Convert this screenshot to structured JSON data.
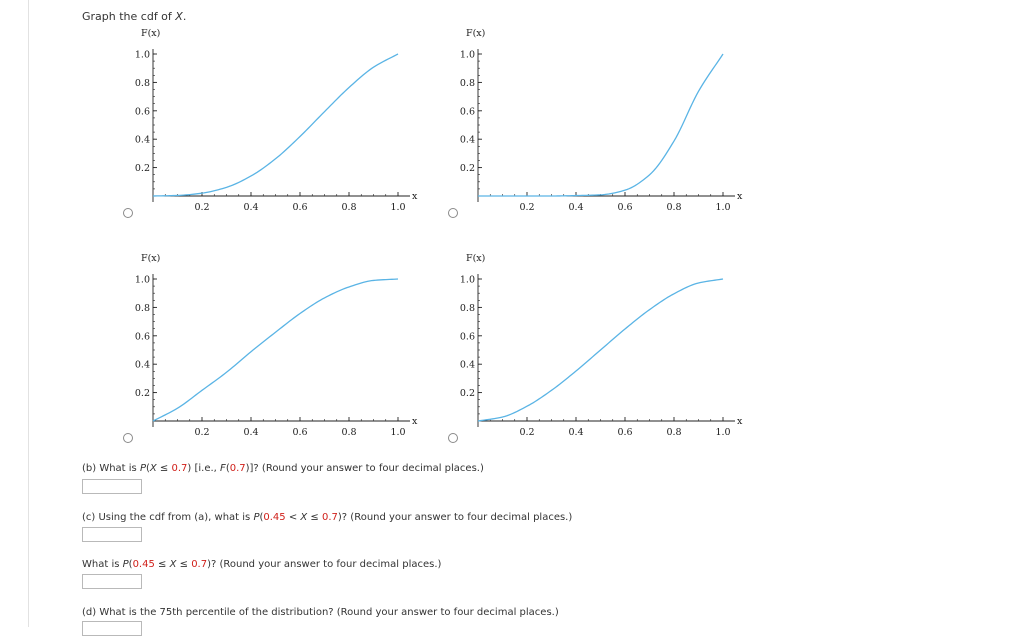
{
  "prompt": {
    "text": "Graph the cdf of ",
    "var": "X",
    "period": "."
  },
  "colors": {
    "curve": "#5ab4e5",
    "axis": "#222222",
    "highlight": "#d0201a"
  },
  "chart_data": [
    {
      "type": "line",
      "ylabel": "F(x)",
      "xlabel": "x",
      "xlim": [
        0,
        1
      ],
      "ylim": [
        0,
        1
      ],
      "xticks": [
        "0.2",
        "0.4",
        "0.6",
        "0.8",
        "1.0"
      ],
      "yticks": [
        "1.0",
        "0.8",
        "0.6",
        "0.4",
        "0.2"
      ],
      "x": [
        0,
        0.1,
        0.2,
        0.3,
        0.4,
        0.5,
        0.6,
        0.7,
        0.8,
        0.9,
        1.0
      ],
      "y": [
        0,
        0.004,
        0.02,
        0.061,
        0.141,
        0.262,
        0.419,
        0.594,
        0.764,
        0.907,
        1.0
      ]
    },
    {
      "type": "line",
      "ylabel": "F(x)",
      "xlabel": "x",
      "xlim": [
        0,
        1
      ],
      "ylim": [
        0,
        1
      ],
      "xticks": [
        "0.2",
        "0.4",
        "0.6",
        "0.8",
        "1.0"
      ],
      "yticks": [
        "1.0",
        "0.8",
        "0.6",
        "0.4",
        "0.2"
      ],
      "x": [
        0,
        0.1,
        0.2,
        0.3,
        0.4,
        0.5,
        0.6,
        0.7,
        0.8,
        0.9,
        1.0
      ],
      "y": [
        0,
        0.0,
        0.0,
        0.0,
        0.003,
        0.008,
        0.041,
        0.149,
        0.387,
        0.737,
        1.0
      ]
    },
    {
      "type": "line",
      "ylabel": "F(x)",
      "xlabel": "x",
      "xlim": [
        0,
        1
      ],
      "ylim": [
        0,
        1
      ],
      "xticks": [
        "0.2",
        "0.4",
        "0.6",
        "0.8",
        "1.0"
      ],
      "yticks": [
        "1.0",
        "0.8",
        "0.6",
        "0.4",
        "0.2"
      ],
      "x": [
        0,
        0.1,
        0.2,
        0.3,
        0.4,
        0.5,
        0.6,
        0.7,
        0.8,
        0.9,
        1.0
      ],
      "y": [
        0,
        0.09,
        0.216,
        0.343,
        0.488,
        0.625,
        0.757,
        0.867,
        0.944,
        0.99,
        1.0
      ]
    },
    {
      "type": "line",
      "ylabel": "F(x)",
      "xlabel": "x",
      "xlim": [
        0,
        1
      ],
      "ylim": [
        0,
        1
      ],
      "xticks": [
        "0.2",
        "0.4",
        "0.6",
        "0.8",
        "1.0"
      ],
      "yticks": [
        "1.0",
        "0.8",
        "0.6",
        "0.4",
        "0.2"
      ],
      "x": [
        0,
        0.1,
        0.2,
        0.3,
        0.4,
        0.5,
        0.6,
        0.7,
        0.8,
        0.9,
        1.0
      ],
      "y": [
        0,
        0.028,
        0.104,
        0.216,
        0.352,
        0.5,
        0.648,
        0.784,
        0.896,
        0.972,
        1.0
      ]
    }
  ],
  "questions": {
    "b": {
      "pre": "(b) What is ",
      "P": "P",
      "open": "(",
      "X": "X",
      "le": " ≤ ",
      "v1": "0.7",
      "mid": ") [i.e., ",
      "F": "F",
      "fopen": "(",
      "fv": "0.7",
      "post": ")]? (Round your answer to four decimal places.)"
    },
    "c": {
      "pre": "(c) Using the cdf from (a), what is ",
      "P": "P",
      "open": "(",
      "v1": "0.45",
      "op1": " < ",
      "X": "X",
      "op2": " ≤ ",
      "v2": "0.7",
      "post": ")? (Round your answer to four decimal places.)"
    },
    "c2": {
      "pre": "What is ",
      "P": "P",
      "open": "(",
      "v1": "0.45",
      "op1": " ≤ ",
      "X": "X",
      "op2": " ≤ ",
      "v2": "0.7",
      "post": ")? (Round your answer to four decimal places.)"
    },
    "d": {
      "text": "(d) What is the 75th percentile of the distribution? (Round your answer to four decimal places.)"
    }
  }
}
